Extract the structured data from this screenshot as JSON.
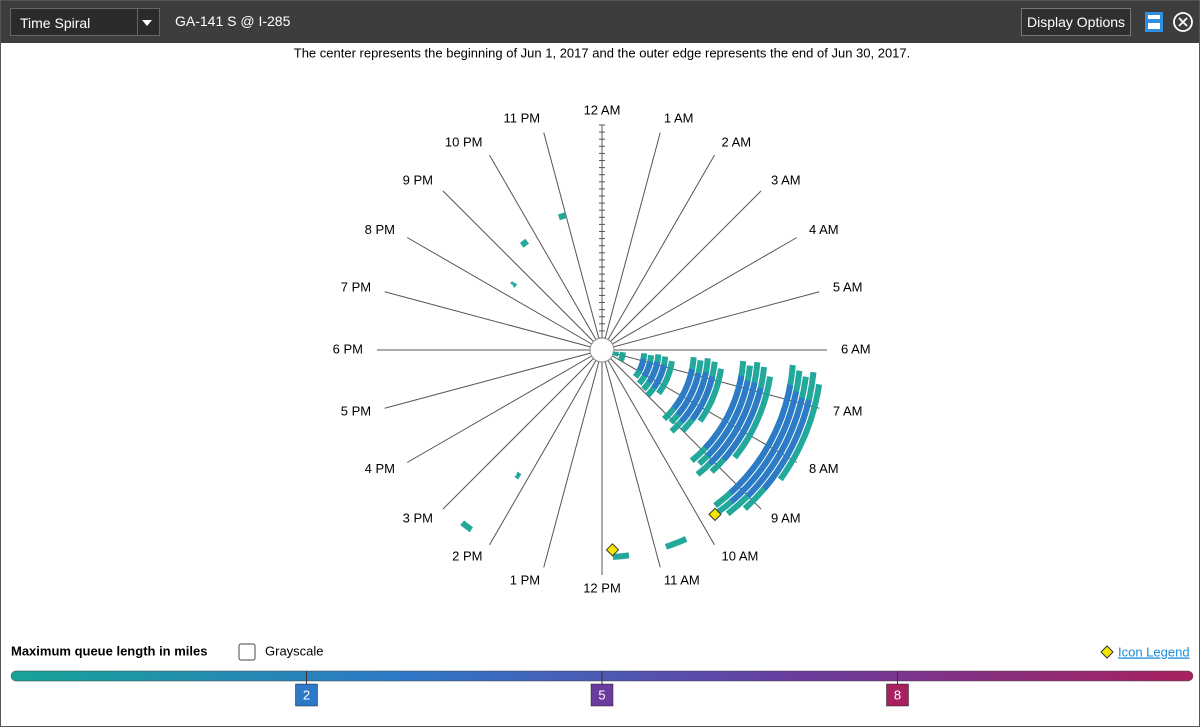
{
  "toolbar": {
    "view": "Time Spiral",
    "location": "GA-141 S @ I-285",
    "button": "Display Options"
  },
  "caption": "The center represents the beginning of Jun 1, 2017 and the outer edge represents the end of Jun 30, 2017.",
  "spiral": {
    "days": 30,
    "hours": [
      "12 AM",
      "1 AM",
      "2 AM",
      "3 AM",
      "4 AM",
      "5 AM",
      "6 AM",
      "7 AM",
      "8 AM",
      "9 AM",
      "10 AM",
      "11 AM",
      "12 PM",
      "1 PM",
      "2 PM",
      "3 PM",
      "4 PM",
      "5 PM",
      "6 PM",
      "7 PM",
      "8 PM",
      "9 PM",
      "10 PM",
      "11 PM"
    ],
    "events": [
      {
        "day": 1,
        "start": 6.5,
        "end": 7.6,
        "queue": 1.2
      },
      {
        "day": 2,
        "start": 6.4,
        "end": 8.0,
        "queue": 1.5
      },
      {
        "day": 5,
        "start": 6.3,
        "end": 8.6,
        "queue": 1.6
      },
      {
        "day": 5,
        "start": 6.8,
        "end": 7.9,
        "queue": 2.4
      },
      {
        "day": 6,
        "start": 6.4,
        "end": 8.8,
        "queue": 1.7
      },
      {
        "day": 6,
        "start": 6.9,
        "end": 8.1,
        "queue": 2.8
      },
      {
        "day": 7,
        "start": 6.3,
        "end": 8.9,
        "queue": 1.6
      },
      {
        "day": 7,
        "start": 6.8,
        "end": 8.3,
        "queue": 3.1
      },
      {
        "day": 8,
        "start": 6.4,
        "end": 9.0,
        "queue": 1.8
      },
      {
        "day": 8,
        "start": 6.9,
        "end": 8.4,
        "queue": 3.3
      },
      {
        "day": 9,
        "start": 6.6,
        "end": 8.5,
        "queue": 1.4
      },
      {
        "day": 12,
        "start": 6.3,
        "end": 9.2,
        "queue": 1.7
      },
      {
        "day": 12,
        "start": 6.8,
        "end": 8.6,
        "queue": 3.6
      },
      {
        "day": 13,
        "start": 6.4,
        "end": 9.1,
        "queue": 1.8
      },
      {
        "day": 13,
        "start": 6.9,
        "end": 8.7,
        "queue": 3.9
      },
      {
        "day": 14,
        "start": 6.3,
        "end": 9.3,
        "queue": 1.9
      },
      {
        "day": 14,
        "start": 6.8,
        "end": 8.8,
        "queue": 4.0
      },
      {
        "day": 15,
        "start": 6.4,
        "end": 9.0,
        "queue": 1.7
      },
      {
        "day": 15,
        "start": 6.9,
        "end": 8.5,
        "queue": 3.5
      },
      {
        "day": 16,
        "start": 6.6,
        "end": 8.4,
        "queue": 1.5
      },
      {
        "day": 19,
        "start": 6.3,
        "end": 9.4,
        "queue": 1.8
      },
      {
        "day": 19,
        "start": 6.7,
        "end": 8.9,
        "queue": 4.1
      },
      {
        "day": 20,
        "start": 6.4,
        "end": 9.3,
        "queue": 1.9
      },
      {
        "day": 20,
        "start": 6.8,
        "end": 9.0,
        "queue": 4.3
      },
      {
        "day": 21,
        "start": 6.3,
        "end": 9.5,
        "queue": 1.8
      },
      {
        "day": 21,
        "start": 6.8,
        "end": 9.1,
        "queue": 4.2
      },
      {
        "day": 22,
        "start": 6.4,
        "end": 9.2,
        "queue": 1.7
      },
      {
        "day": 22,
        "start": 6.9,
        "end": 8.8,
        "queue": 3.8
      },
      {
        "day": 23,
        "start": 6.6,
        "end": 8.6,
        "queue": 1.6
      },
      {
        "day": 26,
        "start": 6.3,
        "end": 9.6,
        "queue": 1.9
      },
      {
        "day": 26,
        "start": 6.7,
        "end": 9.2,
        "queue": 4.4
      },
      {
        "day": 27,
        "start": 6.4,
        "end": 9.7,
        "queue": 1.8
      },
      {
        "day": 27,
        "start": 6.8,
        "end": 9.3,
        "queue": 4.1
      },
      {
        "day": 28,
        "start": 6.5,
        "end": 9.5,
        "queue": 1.7
      },
      {
        "day": 28,
        "start": 6.9,
        "end": 9.0,
        "queue": 3.7
      },
      {
        "day": 29,
        "start": 6.4,
        "end": 9.2,
        "queue": 1.6
      },
      {
        "day": 29,
        "start": 6.9,
        "end": 8.7,
        "queue": 3.2
      },
      {
        "day": 30,
        "start": 6.6,
        "end": 8.4,
        "queue": 1.5
      },
      {
        "day": 18,
        "start": 22.8,
        "end": 23.0,
        "queue": 1.1
      },
      {
        "day": 17,
        "start": 21.5,
        "end": 21.7,
        "queue": 1.2
      },
      {
        "day": 14,
        "start": 20.4,
        "end": 20.5,
        "queue": 1.0
      },
      {
        "day": 20,
        "start": 14.2,
        "end": 14.3,
        "queue": 1.0
      },
      {
        "day": 30,
        "start": 14.4,
        "end": 14.6,
        "queue": 1.1
      },
      {
        "day": 28,
        "start": 11.5,
        "end": 11.8,
        "queue": 1.3
      },
      {
        "day": 28,
        "start": 10.4,
        "end": 10.8,
        "queue": 1.4
      }
    ],
    "icons": [
      {
        "day": 27,
        "hour": 9.7
      },
      {
        "day": 27,
        "hour": 11.8
      }
    ]
  },
  "legend": {
    "title": "Maximum queue length in miles",
    "grayscale": "Grayscale",
    "icon_legend": "Icon Legend",
    "thresholds": [
      2,
      5,
      8
    ],
    "colors": [
      "#17a397",
      "#2e78c8",
      "#6a3c9e",
      "#a8215e"
    ]
  }
}
